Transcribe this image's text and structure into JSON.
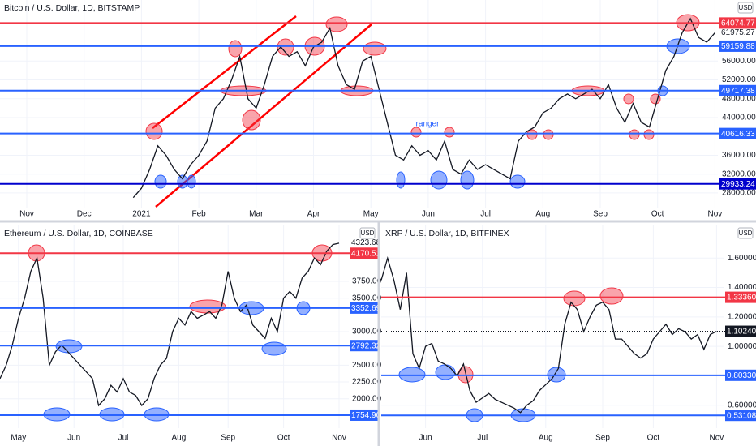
{
  "currency_button": "USD",
  "chart_data": [
    {
      "type": "line",
      "title": "Bitcoin / U.S. Dollar, 1D, BITSTAMP",
      "annotation": "ranger",
      "grid": true,
      "color": "#131722",
      "categories": [
        "Nov",
        null,
        null,
        null,
        null,
        null,
        null,
        "Dec",
        null,
        null,
        null,
        null,
        null,
        null,
        "2021",
        null,
        null,
        null,
        null,
        null,
        null,
        "Feb",
        null,
        null,
        null,
        null,
        null,
        null,
        "Mar",
        null,
        null,
        null,
        null,
        null,
        null,
        "Apr",
        null,
        null,
        null,
        null,
        null,
        null,
        "May",
        null,
        null,
        null,
        null,
        null,
        null,
        "Jun",
        null,
        null,
        null,
        null,
        null,
        null,
        "Jul",
        null,
        null,
        null,
        null,
        null,
        null,
        "Aug",
        null,
        null,
        null,
        null,
        null,
        null,
        "Sep",
        null,
        null,
        null,
        null,
        null,
        null,
        "Oct",
        null,
        null,
        null,
        null,
        null,
        null,
        "Nov"
      ],
      "values": [
        null,
        null,
        null,
        null,
        null,
        null,
        null,
        null,
        null,
        null,
        null,
        null,
        null,
        27000,
        29000,
        33000,
        38000,
        36000,
        33000,
        31000,
        34000,
        36000,
        39000,
        46000,
        48000,
        52000,
        57000,
        48000,
        46000,
        51000,
        57000,
        59000,
        57000,
        58000,
        55000,
        59000,
        60000,
        63000,
        55000,
        51000,
        50000,
        56000,
        57000,
        50000,
        43000,
        36000,
        35000,
        38000,
        36000,
        37000,
        35000,
        39000,
        33000,
        32000,
        35000,
        33000,
        34000,
        33000,
        32000,
        31000,
        39000,
        41000,
        42000,
        45000,
        46000,
        48000,
        49000,
        48000,
        49000,
        50000,
        48000,
        51000,
        46000,
        43000,
        47000,
        43000,
        42000,
        48000,
        54000,
        57000,
        62000,
        65000,
        61000,
        60000,
        62000
      ],
      "ylim": [
        24890,
        68960
      ],
      "yticks": [
        {
          "value": 28000,
          "label": "28000.00"
        },
        {
          "value": 32000,
          "label": "32000.00"
        },
        {
          "value": 36000,
          "label": "36000.00"
        },
        {
          "value": 44000,
          "label": "44000.00"
        },
        {
          "value": 48000,
          "label": "48000.00"
        },
        {
          "value": 52000,
          "label": "52000.00"
        },
        {
          "value": 56000,
          "label": "56000.00"
        }
      ],
      "levels": [
        {
          "value": 64074.77,
          "color": "#f23645"
        },
        {
          "value": 59159.88,
          "color": "#2962ff"
        },
        {
          "value": 49717.38,
          "color": "#2962ff"
        },
        {
          "value": 40616.33,
          "color": "#2962ff"
        },
        {
          "value": 29933.24,
          "color": "#0000cd"
        }
      ],
      "last": {
        "value": 61975.27
      }
    },
    {
      "type": "line",
      "title": "Ethereum / U.S. Dollar, 1D, COINBASE",
      "grid": true,
      "color": "#131722",
      "categories": [
        null,
        null,
        null,
        "May",
        null,
        null,
        null,
        null,
        null,
        null,
        null,
        null,
        "Jun",
        null,
        null,
        null,
        null,
        null,
        null,
        null,
        "Jul",
        null,
        null,
        null,
        null,
        null,
        null,
        null,
        null,
        "Aug",
        null,
        null,
        null,
        null,
        null,
        null,
        null,
        "Sep",
        null,
        null,
        null,
        null,
        null,
        null,
        null,
        null,
        "Oct",
        null,
        null,
        null,
        null,
        null,
        null,
        null,
        null,
        "Nov"
      ],
      "values": [
        2300,
        2500,
        2800,
        3200,
        3500,
        3900,
        4100,
        3500,
        2500,
        2700,
        2800,
        2700,
        2600,
        2500,
        2400,
        2300,
        1900,
        2000,
        2200,
        2100,
        2300,
        2100,
        2050,
        1900,
        2000,
        2300,
        2500,
        2600,
        3000,
        3200,
        3100,
        3300,
        3200,
        3250,
        3300,
        3200,
        3400,
        3900,
        3500,
        3300,
        3400,
        3100,
        3000,
        2900,
        3200,
        3000,
        3500,
        3600,
        3500,
        3800,
        3900,
        4100,
        4000,
        4200,
        4300,
        4320
      ],
      "ylim": [
        1561,
        4585
      ],
      "yticks": [
        {
          "value": 2000,
          "label": "2000.00"
        },
        {
          "value": 2250,
          "label": "2250.00"
        },
        {
          "value": 2500,
          "label": "2500.00"
        },
        {
          "value": 3000,
          "label": "3000.00"
        },
        {
          "value": 3500,
          "label": "3500.00"
        },
        {
          "value": 3750,
          "label": "3750.00"
        }
      ],
      "levels": [
        {
          "value": 4170.51,
          "color": "#f23645"
        },
        {
          "value": 3352.69,
          "color": "#2962ff"
        },
        {
          "value": 2792.32,
          "color": "#2962ff"
        },
        {
          "value": 1754.9,
          "label": "1754.90",
          "color": "#2962ff"
        }
      ],
      "last": {
        "value": 4323.68
      }
    },
    {
      "type": "line",
      "title": "XRP / U.S. Dollar, 1D, BITFINEX",
      "grid": true,
      "color": "#131722",
      "categories": [
        null,
        null,
        null,
        null,
        null,
        null,
        null,
        "Jun",
        null,
        null,
        null,
        null,
        null,
        null,
        null,
        null,
        "Jul",
        null,
        null,
        null,
        null,
        null,
        null,
        null,
        null,
        null,
        "Aug",
        null,
        null,
        null,
        null,
        null,
        null,
        null,
        null,
        "Sep",
        null,
        null,
        null,
        null,
        null,
        null,
        null,
        "Oct",
        null,
        null,
        null,
        null,
        null,
        null,
        null,
        null,
        null,
        "Nov"
      ],
      "values": [
        1.45,
        1.6,
        1.45,
        1.25,
        1.5,
        0.95,
        0.85,
        1.0,
        1.02,
        0.9,
        0.88,
        0.85,
        0.8,
        0.88,
        0.7,
        0.62,
        0.65,
        0.68,
        0.64,
        0.62,
        0.6,
        0.58,
        0.55,
        0.6,
        0.63,
        0.7,
        0.74,
        0.78,
        0.85,
        1.15,
        1.3,
        1.25,
        1.1,
        1.2,
        1.28,
        1.3,
        1.25,
        1.05,
        1.05,
        1.0,
        0.95,
        0.92,
        0.95,
        1.05,
        1.1,
        1.15,
        1.08,
        1.12,
        1.1,
        1.05,
        1.08,
        0.98,
        1.08,
        1.1024
      ],
      "ylim": [
        0.444,
        1.822
      ],
      "yticks": [
        {
          "value": 0.6,
          "label": "0.60000"
        },
        {
          "value": 1.0,
          "label": "1.00000"
        },
        {
          "value": 1.2,
          "label": "1.20000"
        },
        {
          "value": 1.4,
          "label": "1.40000"
        },
        {
          "value": 1.6,
          "label": "1.60000"
        }
      ],
      "levels": [
        {
          "value": 1.3336,
          "label": "1.33360",
          "color": "#f23645"
        },
        {
          "value": 0.8033,
          "label": "0.80330",
          "color": "#2962ff"
        },
        {
          "value": 0.53108,
          "color": "#2962ff"
        }
      ],
      "last": {
        "value": 1.1024,
        "label": "1.10240",
        "color": "#131722"
      }
    }
  ]
}
